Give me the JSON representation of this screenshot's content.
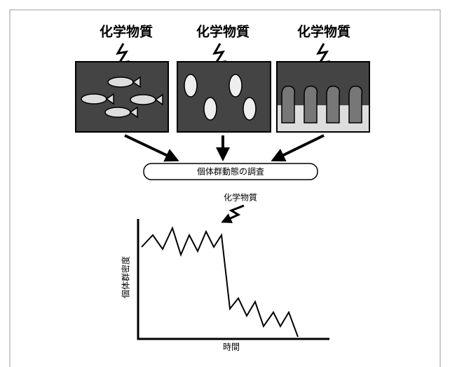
{
  "panels": [
    {
      "chemical": "化学物質"
    },
    {
      "chemical": "化学物質"
    },
    {
      "chemical": "化学物質"
    }
  ],
  "survey": "個体群動態の調査",
  "graph": {
    "chemical": "化学物質",
    "y_label": "個体群密度",
    "x_label": "時間"
  }
}
